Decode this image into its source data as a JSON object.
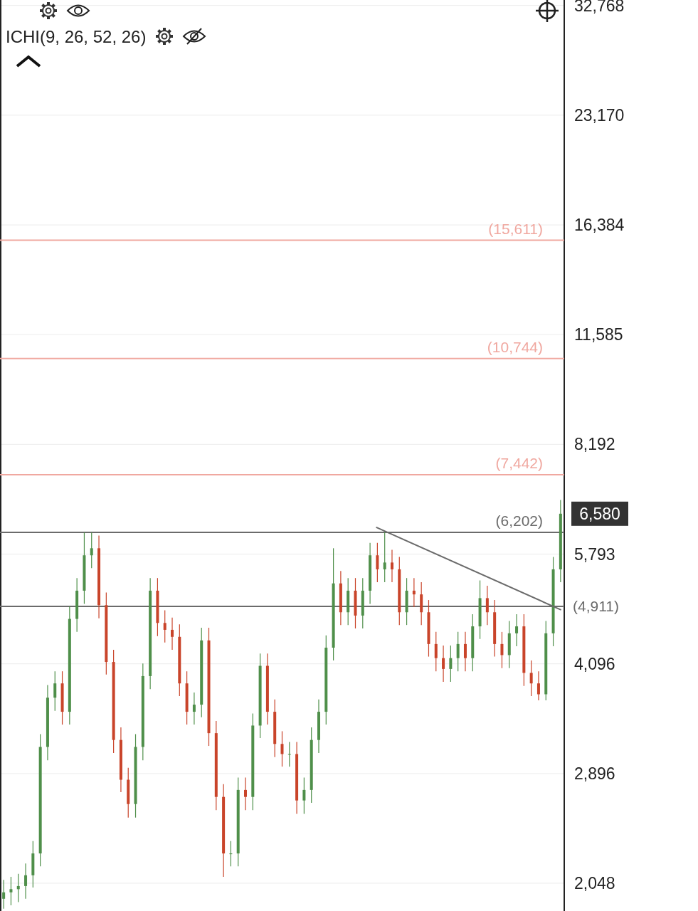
{
  "chart_data": {
    "type": "candlestick",
    "log": "y",
    "grid": "y",
    "tick_labels": "y",
    "annotations": [
      "ICHI(9, 26, 52, 26)",
      "6,580"
    ],
    "ref_lines": [
      {
        "axis": "y",
        "value": 15611,
        "label": "(15,611)",
        "color": "#f0a8a0"
      },
      {
        "axis": "y",
        "value": 10744,
        "label": "(10,744)",
        "color": "#f0a8a0"
      },
      {
        "axis": "y",
        "value": 7442,
        "label": "(7,442)",
        "color": "#f0a8a0"
      },
      {
        "axis": "y",
        "value": 6202,
        "label": "(6,202)",
        "color": "#6b6b6b"
      },
      {
        "axis": "y",
        "value": 4911,
        "label": "(4,911)",
        "color": "#6b6b6b"
      }
    ],
    "ylim": [
      1876,
      33340
    ],
    "yticks": [
      {
        "value": 2048,
        "label": "2,048"
      },
      {
        "value": 2896,
        "label": "2,896"
      },
      {
        "value": 4096,
        "label": "4,096"
      },
      {
        "value": 5793,
        "label": "5,793"
      },
      {
        "value": 8192,
        "label": "8,192"
      },
      {
        "value": 11585,
        "label": "11,585"
      },
      {
        "value": 16384,
        "label": "16,384"
      },
      {
        "value": 23170,
        "label": "23,170"
      },
      {
        "value": 32768,
        "label": "32,768"
      }
    ],
    "categories": [
      null,
      null,
      null,
      null,
      null,
      null,
      null,
      null,
      null,
      null,
      null,
      null,
      null,
      null,
      null,
      null,
      null,
      null,
      null,
      null,
      null,
      null,
      null,
      null,
      null,
      null,
      null,
      null,
      null,
      null,
      null,
      null,
      null,
      null,
      null,
      null,
      null,
      null,
      null,
      null,
      null,
      null,
      null,
      null,
      null,
      null,
      null,
      null,
      null,
      null,
      null,
      null,
      null,
      null,
      null,
      null,
      null,
      null,
      null,
      null,
      null,
      null,
      null,
      null,
      null,
      null,
      null,
      null,
      null,
      null,
      null,
      null,
      null,
      null,
      null,
      null,
      null
    ],
    "ohlc": [
      [
        1950,
        2070,
        1890,
        1990
      ],
      [
        1990,
        2090,
        1910,
        2010
      ],
      [
        2010,
        2110,
        1930,
        2030
      ],
      [
        2030,
        2180,
        1950,
        2100
      ],
      [
        2100,
        2340,
        2020,
        2250
      ],
      [
        2250,
        3280,
        2160,
        3150
      ],
      [
        3150,
        3830,
        3020,
        3680
      ],
      [
        3680,
        4000,
        3530,
        3850
      ],
      [
        3850,
        4000,
        3380,
        3520
      ],
      [
        3520,
        4910,
        3380,
        4720
      ],
      [
        4720,
        5370,
        4530,
        5160
      ],
      [
        5160,
        6200,
        4950,
        5770
      ],
      [
        5770,
        6200,
        5540,
        5900
      ],
      [
        5900,
        6140,
        4730,
        4930
      ],
      [
        4930,
        5130,
        3960,
        4120
      ],
      [
        4120,
        4280,
        3090,
        3220
      ],
      [
        3220,
        3350,
        2730,
        2840
      ],
      [
        2840,
        2950,
        2520,
        2630
      ],
      [
        2630,
        3280,
        2520,
        3150
      ],
      [
        3150,
        4100,
        3020,
        3940
      ],
      [
        3940,
        5370,
        3780,
        5160
      ],
      [
        5160,
        5370,
        4470,
        4660
      ],
      [
        4660,
        4850,
        4380,
        4560
      ],
      [
        4560,
        4740,
        4280,
        4460
      ],
      [
        4460,
        4640,
        3700,
        3850
      ],
      [
        3850,
        4000,
        3380,
        3520
      ],
      [
        3520,
        3740,
        3380,
        3600
      ],
      [
        3600,
        4590,
        3460,
        4410
      ],
      [
        4410,
        4590,
        3160,
        3290
      ],
      [
        3290,
        3420,
        2580,
        2690
      ],
      [
        2690,
        2800,
        2090,
        2250
      ],
      [
        2250,
        2340,
        2160,
        2250
      ],
      [
        2250,
        2860,
        2160,
        2750
      ],
      [
        2750,
        2860,
        2580,
        2690
      ],
      [
        2690,
        3500,
        2580,
        3370
      ],
      [
        3370,
        4230,
        3240,
        4070
      ],
      [
        4070,
        4230,
        3380,
        3520
      ],
      [
        3520,
        3660,
        3050,
        3180
      ],
      [
        3180,
        3310,
        2960,
        3080
      ],
      [
        3080,
        3200,
        2960,
        3080
      ],
      [
        3080,
        3200,
        2550,
        2660
      ],
      [
        2660,
        2860,
        2550,
        2750
      ],
      [
        2750,
        3350,
        2640,
        3220
      ],
      [
        3220,
        3660,
        3090,
        3520
      ],
      [
        3520,
        4480,
        3380,
        4310
      ],
      [
        4310,
        5900,
        4140,
        5280
      ],
      [
        5280,
        5490,
        4630,
        4820
      ],
      [
        4820,
        5370,
        4630,
        5160
      ],
      [
        5160,
        5370,
        4580,
        4770
      ],
      [
        4770,
        5370,
        4580,
        5160
      ],
      [
        5160,
        6000,
        4950,
        5770
      ],
      [
        5770,
        6000,
        5300,
        5520
      ],
      [
        5520,
        6202,
        5300,
        5640
      ],
      [
        5640,
        5870,
        5300,
        5520
      ],
      [
        5520,
        5740,
        4630,
        4820
      ],
      [
        4820,
        5370,
        4630,
        5160
      ],
      [
        5160,
        5370,
        4900,
        5100
      ],
      [
        5100,
        5300,
        4630,
        4820
      ],
      [
        4820,
        5010,
        4190,
        4360
      ],
      [
        4360,
        4530,
        4000,
        4170
      ],
      [
        4170,
        4340,
        3870,
        4030
      ],
      [
        4030,
        4340,
        3870,
        4170
      ],
      [
        4170,
        4530,
        4000,
        4360
      ],
      [
        4360,
        4530,
        4000,
        4170
      ],
      [
        4170,
        4790,
        4000,
        4610
      ],
      [
        4610,
        5330,
        4430,
        5040
      ],
      [
        5040,
        5240,
        4630,
        4820
      ],
      [
        4820,
        5010,
        4190,
        4360
      ],
      [
        4360,
        4530,
        4040,
        4210
      ],
      [
        4210,
        4690,
        4040,
        4510
      ],
      [
        4510,
        4790,
        4330,
        4610
      ],
      [
        4610,
        4790,
        3820,
        3980
      ],
      [
        3980,
        4140,
        3700,
        3850
      ],
      [
        3850,
        4000,
        3650,
        3720
      ],
      [
        3720,
        4690,
        3650,
        4510
      ],
      [
        4510,
        5740,
        4330,
        5520
      ],
      [
        5520,
        6870,
        5300,
        6580
      ]
    ]
  }
}
